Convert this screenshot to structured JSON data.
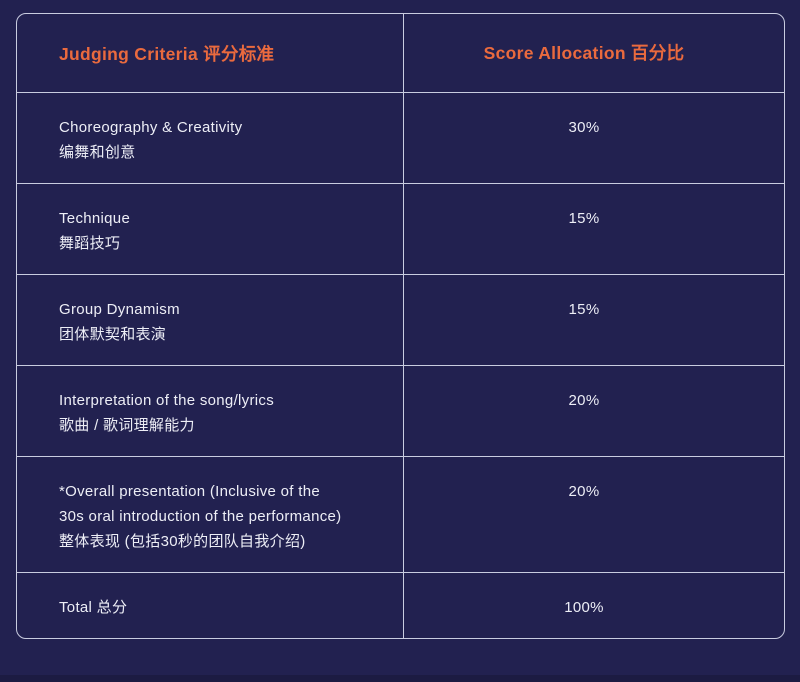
{
  "colors": {
    "background": "#222150",
    "background_bottom": "#1c1b42",
    "border": "#c9cce0",
    "accent": "#ea6a3e",
    "text": "#edeef6"
  },
  "table": {
    "header": {
      "criteria": "Judging Criteria 评分标准",
      "score": "Score Allocation 百分比"
    },
    "rows": [
      {
        "lines": [
          "Choreography & Creativity",
          "编舞和创意"
        ],
        "score": "30%"
      },
      {
        "lines": [
          "Technique",
          "舞蹈技巧"
        ],
        "score": "15%"
      },
      {
        "lines": [
          "Group Dynamism",
          "团体默契和表演"
        ],
        "score": "15%"
      },
      {
        "lines": [
          "Interpretation of the song/lyrics",
          "歌曲 / 歌词理解能力"
        ],
        "score": "20%"
      },
      {
        "lines": [
          "*Overall presentation (Inclusive of the 30s oral introduction of the performance)",
          "整体表现 (包括30秒的团队自我介绍)"
        ],
        "score": "20%"
      },
      {
        "lines": [
          "Total 总分"
        ],
        "score": "100%"
      }
    ]
  }
}
